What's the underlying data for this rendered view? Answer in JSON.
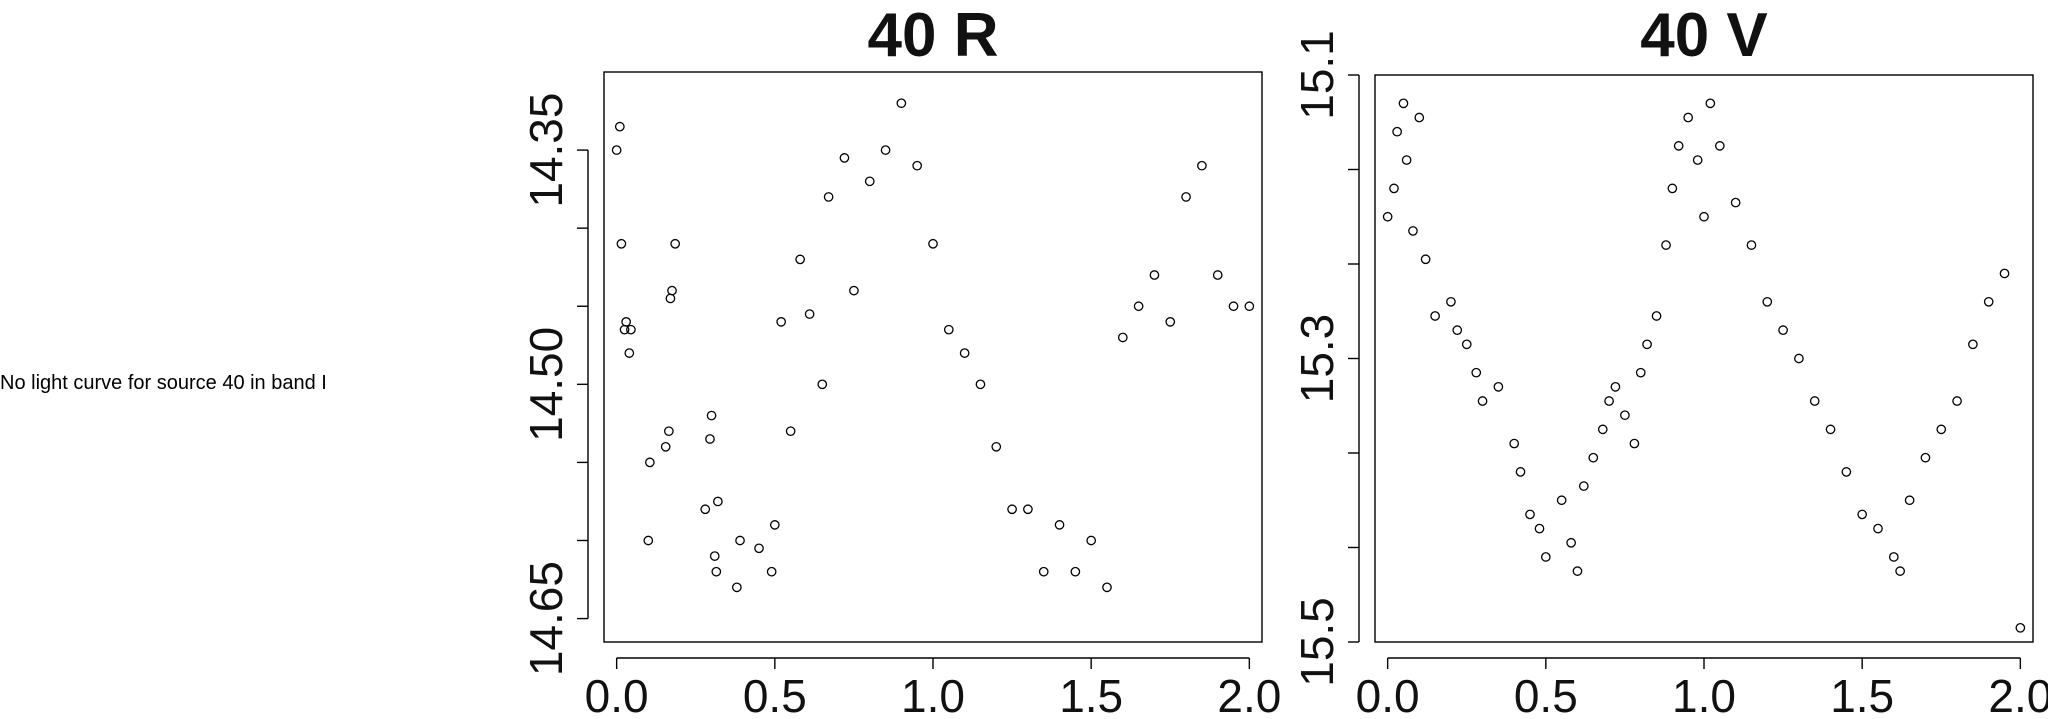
{
  "note": "No light curve for source 40 in band I",
  "chart_data": [
    {
      "type": "scatter",
      "title": "40 R",
      "xlim": [
        -0.04,
        2.04
      ],
      "ylim": [
        14.665,
        14.3
      ],
      "xticks": [
        0.0,
        0.5,
        1.0,
        1.5,
        2.0
      ],
      "xtick_labels": [
        "0.0",
        "0.5",
        "1.0",
        "1.5",
        "2.0"
      ],
      "yticks": [
        14.35,
        14.5,
        14.65
      ],
      "ytick_labels": [
        "14.35",
        "14.50",
        "14.65"
      ],
      "grid": false,
      "x": [
        0.0,
        0.01,
        0.015,
        0.025,
        0.03,
        0.04,
        0.045,
        0.1,
        0.105,
        0.155,
        0.165,
        0.17,
        0.175,
        0.185,
        0.28,
        0.295,
        0.3,
        0.31,
        0.315,
        0.32,
        0.38,
        0.39,
        0.45,
        0.49,
        0.5,
        0.52,
        0.55,
        0.58,
        0.61,
        0.65,
        0.67,
        0.72,
        0.75,
        0.8,
        0.85,
        0.9,
        0.95,
        1.0,
        1.05,
        1.1,
        1.15,
        1.2,
        1.25,
        1.3,
        1.35,
        1.4,
        1.45,
        1.5,
        1.55,
        1.6,
        1.65,
        1.7,
        1.75,
        1.8,
        1.85,
        1.9,
        1.95,
        2.0
      ],
      "y": [
        14.35,
        14.335,
        14.41,
        14.465,
        14.46,
        14.48,
        14.465,
        14.6,
        14.55,
        14.54,
        14.53,
        14.445,
        14.44,
        14.41,
        14.58,
        14.535,
        14.52,
        14.61,
        14.62,
        14.575,
        14.63,
        14.6,
        14.605,
        14.62,
        14.59,
        14.46,
        14.53,
        14.42,
        14.455,
        14.5,
        14.38,
        14.355,
        14.44,
        14.37,
        14.35,
        14.32,
        14.36,
        14.41,
        14.465,
        14.48,
        14.5,
        14.54,
        14.58,
        14.58,
        14.62,
        14.59,
        14.62,
        14.6,
        14.63,
        14.47,
        14.45,
        14.43,
        14.46,
        14.38,
        14.36,
        14.43,
        14.45,
        14.45
      ]
    },
    {
      "type": "scatter",
      "title": "40 V",
      "xlim": [
        -0.04,
        2.04
      ],
      "ylim": [
        15.5,
        15.1
      ],
      "xticks": [
        0.0,
        0.5,
        1.0,
        1.5,
        2.0
      ],
      "xtick_labels": [
        "0.0",
        "0.5",
        "1.0",
        "1.5",
        "2.0"
      ],
      "yticks": [
        15.1,
        15.3,
        15.5
      ],
      "ytick_labels": [
        "15.1",
        "15.3",
        "15.5"
      ],
      "grid": false,
      "x": [
        0.0,
        0.02,
        0.03,
        0.05,
        0.06,
        0.08,
        0.1,
        0.12,
        0.15,
        0.2,
        0.22,
        0.25,
        0.28,
        0.3,
        0.35,
        0.4,
        0.42,
        0.45,
        0.48,
        0.5,
        0.55,
        0.58,
        0.6,
        0.62,
        0.65,
        0.68,
        0.7,
        0.72,
        0.75,
        0.78,
        0.8,
        0.82,
        0.85,
        0.88,
        0.9,
        0.92,
        0.95,
        0.98,
        1.0,
        1.02,
        1.05,
        1.1,
        1.15,
        1.2,
        1.25,
        1.3,
        1.35,
        1.4,
        1.45,
        1.5,
        1.55,
        1.6,
        1.62,
        1.65,
        1.7,
        1.75,
        1.8,
        1.85,
        1.9,
        1.95,
        2.0
      ],
      "y": [
        15.2,
        15.18,
        15.14,
        15.12,
        15.16,
        15.21,
        15.13,
        15.23,
        15.27,
        15.26,
        15.28,
        15.29,
        15.31,
        15.33,
        15.32,
        15.36,
        15.38,
        15.41,
        15.42,
        15.44,
        15.4,
        15.43,
        15.45,
        15.39,
        15.37,
        15.35,
        15.33,
        15.32,
        15.34,
        15.36,
        15.31,
        15.29,
        15.27,
        15.22,
        15.18,
        15.15,
        15.13,
        15.16,
        15.2,
        15.12,
        15.15,
        15.19,
        15.22,
        15.26,
        15.28,
        15.3,
        15.33,
        15.35,
        15.38,
        15.41,
        15.42,
        15.44,
        15.45,
        15.4,
        15.37,
        15.35,
        15.33,
        15.29,
        15.26,
        15.24,
        15.49
      ]
    }
  ]
}
